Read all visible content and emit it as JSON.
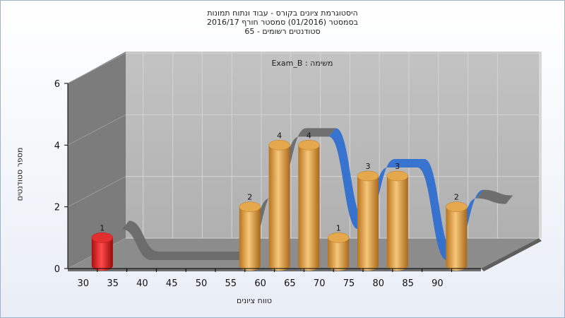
{
  "chart_data": {
    "type": "bar",
    "title_lines": [
      "היסטוגרמת ציונים בקורס - עבוד ונתוח תמונות",
      "בסמסטר  (01/2016)  סמסטר חורף 2016/17",
      "סטודנטים רשומים - 65"
    ],
    "inner_title": "משימה : Exam_B",
    "xlabel": "טווח ציונים",
    "ylabel": "מספר סטודנטים",
    "x_ticks": [
      "30",
      "35",
      "40",
      "45",
      "50",
      "55",
      "60",
      "65",
      "70",
      "75",
      "80",
      "85",
      "90"
    ],
    "y_ticks": [
      "0",
      "2",
      "4",
      "6"
    ],
    "ylim": [
      0,
      6
    ],
    "bins": [
      30,
      35,
      40,
      45,
      50,
      55,
      60,
      65,
      70,
      75,
      80,
      85,
      90
    ],
    "values": [
      1,
      0,
      0,
      0,
      0,
      2,
      4,
      4,
      1,
      3,
      3,
      0,
      2
    ],
    "highlight_bins": [
      30
    ],
    "colors": {
      "bar": "#d99a3c",
      "bar_highlight": "#d81e1e",
      "ribbon_blue": "#2f6fd0",
      "ribbon_gray": "#6a6a6a",
      "wall": "#b3b3b3",
      "side_wall": "#7a7a7a"
    }
  }
}
